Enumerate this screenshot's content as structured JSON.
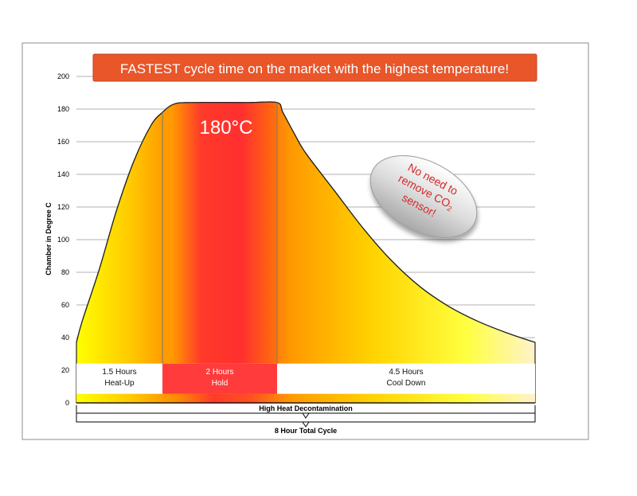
{
  "chart_data": {
    "type": "area",
    "title": "FASTEST cycle time on the market with the highest temperature!",
    "ylabel": "Chamber in Degree  C",
    "ylim": [
      0,
      200
    ],
    "yticks": [
      0,
      20,
      40,
      60,
      80,
      100,
      120,
      140,
      160,
      180,
      200
    ],
    "grid": true,
    "series": [
      {
        "values": [
          [
            0,
            37
          ],
          [
            0.1,
            50
          ],
          [
            0.4,
            82
          ],
          [
            0.7,
            118
          ],
          [
            1.0,
            148
          ],
          [
            1.3,
            170
          ],
          [
            1.5,
            178
          ],
          [
            1.7,
            183
          ],
          [
            2.0,
            184
          ],
          [
            3.0,
            184
          ],
          [
            3.5,
            184
          ],
          [
            3.6,
            178
          ],
          [
            3.8,
            165
          ],
          [
            4.0,
            153
          ],
          [
            4.5,
            130
          ],
          [
            5.0,
            107
          ],
          [
            5.5,
            87
          ],
          [
            6.0,
            71
          ],
          [
            6.5,
            59
          ],
          [
            7.0,
            50
          ],
          [
            7.5,
            43
          ],
          [
            8.0,
            37
          ]
        ]
      }
    ],
    "phases": [
      {
        "label_top": "1.5 Hours",
        "label_bottom": "Heat-Up",
        "start": 0,
        "end": 1.5
      },
      {
        "label_top": "2 Hours",
        "label_bottom": "Hold",
        "start": 1.5,
        "end": 3.5
      },
      {
        "label_top": "4.5 Hours",
        "label_bottom": "Cool Down",
        "start": 3.5,
        "end": 8
      }
    ],
    "peak_label": "180°C",
    "badge": {
      "line1": "No need to",
      "line2": "remove CO",
      "subscript": "2",
      "line3": "sensor!"
    },
    "bracket_labels": {
      "decontamination": "High Heat Decontamination",
      "total": "8 Hour Total Cycle"
    },
    "colors": {
      "title_bg": "#e8562a",
      "yellow": "#ffff00",
      "orange": "#ff8c00",
      "red": "#ff3030",
      "hold_box": "#ff3b3b",
      "grid": "#b0b0b0"
    }
  }
}
